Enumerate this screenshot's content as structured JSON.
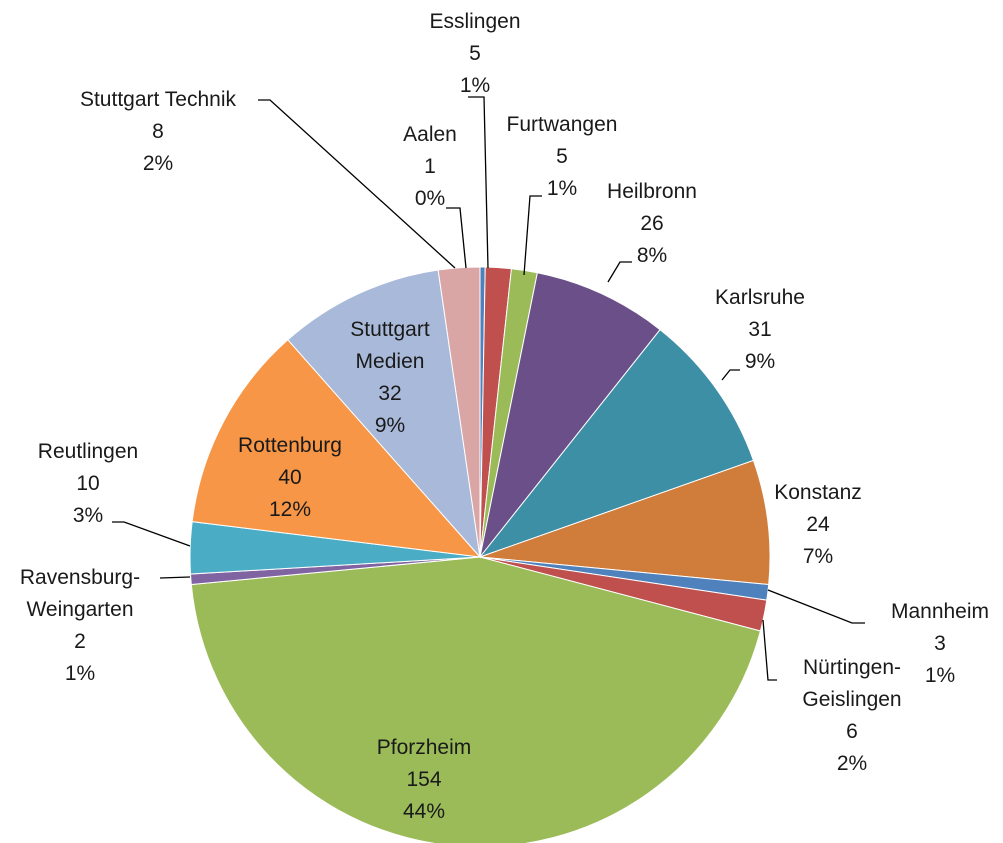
{
  "chart_data": {
    "type": "pie",
    "categories": [
      "Aalen",
      "Esslingen",
      "Furtwangen",
      "Heilbronn",
      "Karlsruhe",
      "Konstanz",
      "Mannheim",
      "Nürtingen-Geislingen",
      "Pforzheim",
      "Ravensburg-Weingarten",
      "Reutlingen",
      "Rottenburg",
      "Stuttgart Medien",
      "Stuttgart Technik"
    ],
    "values": [
      1,
      5,
      5,
      26,
      31,
      24,
      3,
      6,
      154,
      2,
      10,
      40,
      32,
      8
    ],
    "percent_labels": [
      "0%",
      "1%",
      "1%",
      "8%",
      "9%",
      "7%",
      "1%",
      "2%",
      "44%",
      "1%",
      "3%",
      "12%",
      "9%",
      "2%"
    ],
    "colors": [
      "#4f81bd",
      "#c0504d",
      "#9bbb59",
      "#6b4f89",
      "#3d8fa6",
      "#d07c3a",
      "#4f81bd",
      "#c0504d",
      "#9bbb59",
      "#8064a2",
      "#4bacc6",
      "#f79646",
      "#a9b9d9",
      "#d9a5a5"
    ]
  }
}
